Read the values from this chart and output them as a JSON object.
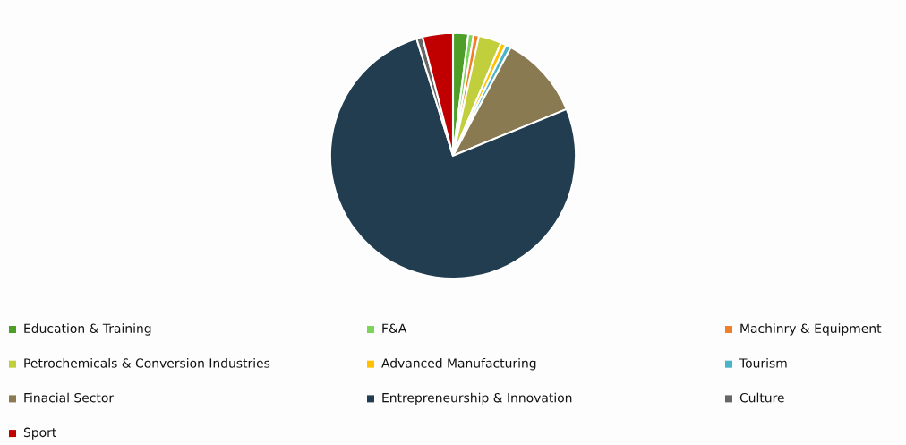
{
  "chart_data": {
    "type": "pie",
    "categories": [
      "Education & Training",
      "F&A",
      "Machinry & Equipment",
      "Petrochemicals & Conversion Industries",
      "Advanced Manufacturing",
      "Tourism",
      "Finacial Sector",
      "Entrepreneurship & Innovation",
      "Culture",
      "Sport"
    ],
    "values": [
      2,
      0.7,
      0.7,
      3,
      0.7,
      0.7,
      11,
      76.4,
      0.8,
      4
    ],
    "colors": [
      "#4e9f28",
      "#7ed35a",
      "#f07f2a",
      "#c2cf3c",
      "#ffc000",
      "#4bb5c8",
      "#8a7a52",
      "#213d4f",
      "#666666",
      "#c00000"
    ],
    "legend": "bottom"
  }
}
